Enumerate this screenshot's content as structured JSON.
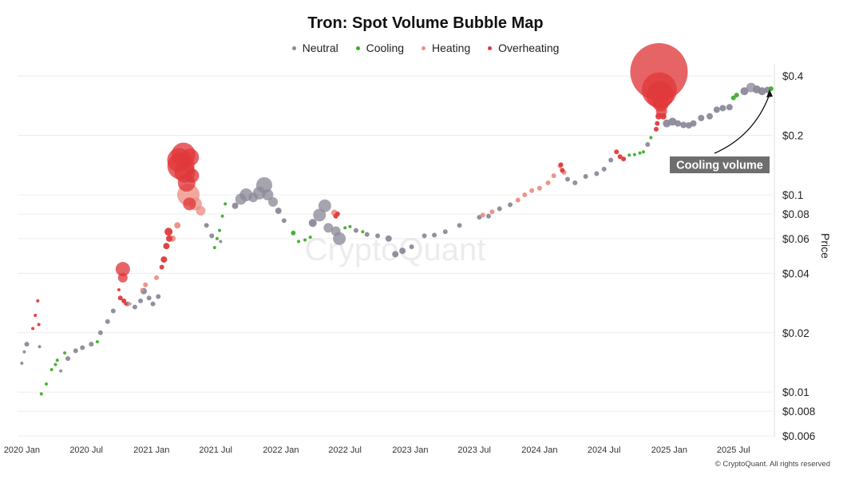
{
  "header": {
    "title": "Tron: Spot Volume Bubble Map"
  },
  "legend": [
    {
      "label": "Neutral",
      "color": "#8c8a99"
    },
    {
      "label": "Cooling",
      "color": "#3fae2a"
    },
    {
      "label": "Heating",
      "color": "#ec8f84"
    },
    {
      "label": "Overheating",
      "color": "#e0393b"
    }
  ],
  "footer": {
    "copyright": "© CryptoQuant. All rights reserved"
  },
  "watermark": "CryptoQuant",
  "annotation": {
    "label": "Cooling volume"
  },
  "chart_data": {
    "type": "scatter",
    "title": "Tron: Spot Volume Bubble Map",
    "ylabel": "Price",
    "yscale": "log",
    "ylim": [
      0.006,
      0.42
    ],
    "xlim": [
      "2019-12-20",
      "2025-10-20"
    ],
    "x_ticks": [
      "2020 Jan",
      "2020 Jul",
      "2021 Jan",
      "2021 Jul",
      "2022 Jan",
      "2022 Jul",
      "2023 Jan",
      "2023 Jul",
      "2024 Jan",
      "2024 Jul",
      "2025 Jan",
      "2025 Jul"
    ],
    "y_ticks": [
      {
        "value": 0.006,
        "label": "$0.006"
      },
      {
        "value": 0.008,
        "label": "$0.008"
      },
      {
        "value": 0.01,
        "label": "$0.01"
      },
      {
        "value": 0.02,
        "label": "$0.02"
      },
      {
        "value": 0.04,
        "label": "$0.04"
      },
      {
        "value": 0.06,
        "label": "$0.06"
      },
      {
        "value": 0.08,
        "label": "$0.08"
      },
      {
        "value": 0.1,
        "label": "$0.1"
      },
      {
        "value": 0.2,
        "label": "$0.2"
      },
      {
        "value": 0.4,
        "label": "$0.4"
      }
    ],
    "legend_position": "top-center",
    "grid": "horizontal",
    "series": [
      {
        "name": "Neutral",
        "color": "#8c8a99",
        "points": [
          {
            "date": "2020-01-01",
            "price": 0.014,
            "r": 2
          },
          {
            "date": "2020-01-08",
            "price": 0.016,
            "r": 2
          },
          {
            "date": "2020-01-15",
            "price": 0.0175,
            "r": 3
          },
          {
            "date": "2020-02-20",
            "price": 0.017,
            "r": 2
          },
          {
            "date": "2020-04-20",
            "price": 0.0128,
            "r": 2
          },
          {
            "date": "2020-05-10",
            "price": 0.0148,
            "r": 3
          },
          {
            "date": "2020-06-01",
            "price": 0.0162,
            "r": 3
          },
          {
            "date": "2020-06-20",
            "price": 0.0168,
            "r": 3
          },
          {
            "date": "2020-07-15",
            "price": 0.0175,
            "r": 3
          },
          {
            "date": "2020-08-10",
            "price": 0.02,
            "r": 3
          },
          {
            "date": "2020-08-30",
            "price": 0.0228,
            "r": 3
          },
          {
            "date": "2020-09-15",
            "price": 0.0258,
            "r": 3
          },
          {
            "date": "2020-10-25",
            "price": 0.028,
            "r": 3
          },
          {
            "date": "2020-11-15",
            "price": 0.027,
            "r": 3
          },
          {
            "date": "2020-12-01",
            "price": 0.029,
            "r": 3
          },
          {
            "date": "2020-12-10",
            "price": 0.0325,
            "r": 4
          },
          {
            "date": "2020-12-25",
            "price": 0.03,
            "r": 3
          },
          {
            "date": "2021-01-05",
            "price": 0.028,
            "r": 3
          },
          {
            "date": "2021-01-20",
            "price": 0.0305,
            "r": 3
          },
          {
            "date": "2021-06-05",
            "price": 0.07,
            "r": 3
          },
          {
            "date": "2021-06-20",
            "price": 0.062,
            "r": 3
          },
          {
            "date": "2021-07-15",
            "price": 0.058,
            "r": 2
          },
          {
            "date": "2021-08-25",
            "price": 0.088,
            "r": 4
          },
          {
            "date": "2021-09-10",
            "price": 0.095,
            "r": 7
          },
          {
            "date": "2021-09-25",
            "price": 0.1,
            "r": 8
          },
          {
            "date": "2021-10-15",
            "price": 0.097,
            "r": 6
          },
          {
            "date": "2021-11-01",
            "price": 0.102,
            "r": 8
          },
          {
            "date": "2021-11-15",
            "price": 0.112,
            "r": 10
          },
          {
            "date": "2021-11-25",
            "price": 0.1,
            "r": 7
          },
          {
            "date": "2021-12-10",
            "price": 0.092,
            "r": 6
          },
          {
            "date": "2021-12-25",
            "price": 0.083,
            "r": 4
          },
          {
            "date": "2022-01-10",
            "price": 0.074,
            "r": 3
          },
          {
            "date": "2022-04-01",
            "price": 0.072,
            "r": 5
          },
          {
            "date": "2022-04-20",
            "price": 0.079,
            "r": 8
          },
          {
            "date": "2022-05-05",
            "price": 0.088,
            "r": 8
          },
          {
            "date": "2022-05-15",
            "price": 0.068,
            "r": 6
          },
          {
            "date": "2022-06-05",
            "price": 0.0655,
            "r": 6
          },
          {
            "date": "2022-06-15",
            "price": 0.06,
            "r": 8
          },
          {
            "date": "2022-08-01",
            "price": 0.066,
            "r": 3
          },
          {
            "date": "2022-09-01",
            "price": 0.063,
            "r": 3
          },
          {
            "date": "2022-10-01",
            "price": 0.062,
            "r": 3
          },
          {
            "date": "2022-11-01",
            "price": 0.06,
            "r": 4
          },
          {
            "date": "2022-11-20",
            "price": 0.05,
            "r": 4
          },
          {
            "date": "2022-12-10",
            "price": 0.052,
            "r": 4
          },
          {
            "date": "2023-01-05",
            "price": 0.0545,
            "r": 3
          },
          {
            "date": "2023-02-10",
            "price": 0.062,
            "r": 3
          },
          {
            "date": "2023-03-10",
            "price": 0.0625,
            "r": 3
          },
          {
            "date": "2023-04-10",
            "price": 0.065,
            "r": 3
          },
          {
            "date": "2023-05-20",
            "price": 0.07,
            "r": 3
          },
          {
            "date": "2023-07-15",
            "price": 0.077,
            "r": 3
          },
          {
            "date": "2023-08-10",
            "price": 0.078,
            "r": 3
          },
          {
            "date": "2023-09-10",
            "price": 0.085,
            "r": 3
          },
          {
            "date": "2023-10-10",
            "price": 0.089,
            "r": 3
          },
          {
            "date": "2024-03-20",
            "price": 0.12,
            "r": 3
          },
          {
            "date": "2024-04-10",
            "price": 0.115,
            "r": 3
          },
          {
            "date": "2024-05-10",
            "price": 0.124,
            "r": 3
          },
          {
            "date": "2024-06-10",
            "price": 0.128,
            "r": 3
          },
          {
            "date": "2024-07-01",
            "price": 0.135,
            "r": 3
          },
          {
            "date": "2024-07-20",
            "price": 0.15,
            "r": 3
          },
          {
            "date": "2024-11-01",
            "price": 0.18,
            "r": 3
          },
          {
            "date": "2024-12-25",
            "price": 0.23,
            "r": 5
          },
          {
            "date": "2025-01-10",
            "price": 0.235,
            "r": 5
          },
          {
            "date": "2025-01-25",
            "price": 0.23,
            "r": 4
          },
          {
            "date": "2025-02-10",
            "price": 0.226,
            "r": 4
          },
          {
            "date": "2025-02-25",
            "price": 0.225,
            "r": 4
          },
          {
            "date": "2025-03-10",
            "price": 0.23,
            "r": 4
          },
          {
            "date": "2025-04-01",
            "price": 0.245,
            "r": 4
          },
          {
            "date": "2025-04-25",
            "price": 0.25,
            "r": 4
          },
          {
            "date": "2025-05-15",
            "price": 0.27,
            "r": 4
          },
          {
            "date": "2025-06-01",
            "price": 0.275,
            "r": 4
          },
          {
            "date": "2025-06-20",
            "price": 0.278,
            "r": 4
          },
          {
            "date": "2025-08-01",
            "price": 0.335,
            "r": 5
          },
          {
            "date": "2025-08-20",
            "price": 0.35,
            "r": 6
          },
          {
            "date": "2025-09-05",
            "price": 0.342,
            "r": 5
          },
          {
            "date": "2025-09-20",
            "price": 0.335,
            "r": 5
          },
          {
            "date": "2025-10-05",
            "price": 0.34,
            "r": 4
          }
        ]
      },
      {
        "name": "Cooling",
        "color": "#3fae2a",
        "points": [
          {
            "date": "2020-02-25",
            "price": 0.0098,
            "r": 2
          },
          {
            "date": "2020-03-10",
            "price": 0.011,
            "r": 2
          },
          {
            "date": "2020-03-25",
            "price": 0.013,
            "r": 2
          },
          {
            "date": "2020-04-05",
            "price": 0.0138,
            "r": 2
          },
          {
            "date": "2020-04-10",
            "price": 0.0145,
            "r": 2
          },
          {
            "date": "2020-05-01",
            "price": 0.0158,
            "r": 2
          },
          {
            "date": "2020-08-01",
            "price": 0.018,
            "r": 2
          },
          {
            "date": "2021-06-28",
            "price": 0.054,
            "r": 2
          },
          {
            "date": "2021-07-05",
            "price": 0.06,
            "r": 2
          },
          {
            "date": "2021-07-12",
            "price": 0.066,
            "r": 2
          },
          {
            "date": "2021-07-20",
            "price": 0.078,
            "r": 2
          },
          {
            "date": "2021-07-28",
            "price": 0.09,
            "r": 2
          },
          {
            "date": "2022-02-05",
            "price": 0.064,
            "r": 3
          },
          {
            "date": "2022-02-20",
            "price": 0.058,
            "r": 2
          },
          {
            "date": "2022-03-10",
            "price": 0.059,
            "r": 2
          },
          {
            "date": "2022-03-25",
            "price": 0.061,
            "r": 2
          },
          {
            "date": "2022-07-01",
            "price": 0.068,
            "r": 2
          },
          {
            "date": "2022-07-15",
            "price": 0.069,
            "r": 2
          },
          {
            "date": "2022-08-20",
            "price": 0.065,
            "r": 2
          },
          {
            "date": "2024-09-10",
            "price": 0.159,
            "r": 2
          },
          {
            "date": "2024-09-25",
            "price": 0.16,
            "r": 2
          },
          {
            "date": "2024-10-10",
            "price": 0.163,
            "r": 2
          },
          {
            "date": "2024-10-20",
            "price": 0.165,
            "r": 2
          },
          {
            "date": "2024-11-10",
            "price": 0.195,
            "r": 2
          },
          {
            "date": "2025-07-01",
            "price": 0.31,
            "r": 3
          },
          {
            "date": "2025-07-10",
            "price": 0.32,
            "r": 3
          },
          {
            "date": "2025-10-15",
            "price": 0.345,
            "r": 3
          }
        ]
      },
      {
        "name": "Heating",
        "color": "#ec8f84",
        "points": [
          {
            "date": "2020-11-01",
            "price": 0.028,
            "r": 2
          },
          {
            "date": "2020-12-05",
            "price": 0.033,
            "r": 2
          },
          {
            "date": "2020-12-15",
            "price": 0.035,
            "r": 3
          },
          {
            "date": "2021-01-15",
            "price": 0.038,
            "r": 3
          },
          {
            "date": "2021-03-01",
            "price": 0.06,
            "r": 4
          },
          {
            "date": "2021-03-15",
            "price": 0.07,
            "r": 4
          },
          {
            "date": "2021-04-15",
            "price": 0.1,
            "r": 14
          },
          {
            "date": "2021-05-05",
            "price": 0.09,
            "r": 8
          },
          {
            "date": "2021-05-20",
            "price": 0.083,
            "r": 6
          },
          {
            "date": "2022-06-01",
            "price": 0.081,
            "r": 4
          },
          {
            "date": "2023-07-25",
            "price": 0.079,
            "r": 3
          },
          {
            "date": "2023-08-20",
            "price": 0.082,
            "r": 3
          },
          {
            "date": "2023-11-01",
            "price": 0.094,
            "r": 3
          },
          {
            "date": "2023-11-20",
            "price": 0.1,
            "r": 3
          },
          {
            "date": "2023-12-10",
            "price": 0.105,
            "r": 3
          },
          {
            "date": "2024-01-01",
            "price": 0.108,
            "r": 3
          },
          {
            "date": "2024-01-25",
            "price": 0.115,
            "r": 3
          },
          {
            "date": "2024-02-10",
            "price": 0.125,
            "r": 3
          },
          {
            "date": "2024-02-28",
            "price": 0.14,
            "r": 3
          },
          {
            "date": "2024-03-10",
            "price": 0.13,
            "r": 3
          }
        ]
      },
      {
        "name": "Overheating",
        "color": "#e0393b",
        "points": [
          {
            "date": "2020-02-01",
            "price": 0.021,
            "r": 2
          },
          {
            "date": "2020-02-08",
            "price": 0.0245,
            "r": 2
          },
          {
            "date": "2020-02-15",
            "price": 0.029,
            "r": 2
          },
          {
            "date": "2020-02-18",
            "price": 0.022,
            "r": 2
          },
          {
            "date": "2020-10-01",
            "price": 0.033,
            "r": 2
          },
          {
            "date": "2020-10-05",
            "price": 0.03,
            "r": 3
          },
          {
            "date": "2020-10-15",
            "price": 0.029,
            "r": 3
          },
          {
            "date": "2020-10-20",
            "price": 0.028,
            "r": 2
          },
          {
            "date": "2020-10-12",
            "price": 0.042,
            "r": 9
          },
          {
            "date": "2020-10-12",
            "price": 0.038,
            "r": 6
          },
          {
            "date": "2021-01-30",
            "price": 0.043,
            "r": 3
          },
          {
            "date": "2021-02-05",
            "price": 0.047,
            "r": 4
          },
          {
            "date": "2021-02-12",
            "price": 0.055,
            "r": 4
          },
          {
            "date": "2021-02-20",
            "price": 0.06,
            "r": 4
          },
          {
            "date": "2021-02-18",
            "price": 0.065,
            "r": 5
          },
          {
            "date": "2021-03-20",
            "price": 0.15,
            "r": 15
          },
          {
            "date": "2021-03-25",
            "price": 0.14,
            "r": 17
          },
          {
            "date": "2021-04-01",
            "price": 0.16,
            "r": 15
          },
          {
            "date": "2021-04-05",
            "price": 0.13,
            "r": 13
          },
          {
            "date": "2021-04-10",
            "price": 0.115,
            "r": 11
          },
          {
            "date": "2021-04-18",
            "price": 0.09,
            "r": 8
          },
          {
            "date": "2021-04-20",
            "price": 0.155,
            "r": 11
          },
          {
            "date": "2021-04-25",
            "price": 0.125,
            "r": 9
          },
          {
            "date": "2022-06-05",
            "price": 0.078,
            "r": 3
          },
          {
            "date": "2022-06-10",
            "price": 0.08,
            "r": 3
          },
          {
            "date": "2024-03-01",
            "price": 0.142,
            "r": 3
          },
          {
            "date": "2024-03-05",
            "price": 0.133,
            "r": 3
          },
          {
            "date": "2024-08-05",
            "price": 0.165,
            "r": 3
          },
          {
            "date": "2024-08-15",
            "price": 0.156,
            "r": 3
          },
          {
            "date": "2024-08-25",
            "price": 0.152,
            "r": 3
          },
          {
            "date": "2024-11-25",
            "price": 0.215,
            "r": 3
          },
          {
            "date": "2024-11-28",
            "price": 0.23,
            "r": 3
          },
          {
            "date": "2024-12-02",
            "price": 0.25,
            "r": 4
          },
          {
            "date": "2024-12-03",
            "price": 0.42,
            "r": 36
          },
          {
            "date": "2024-12-04",
            "price": 0.34,
            "r": 22
          },
          {
            "date": "2024-12-06",
            "price": 0.32,
            "r": 17
          },
          {
            "date": "2024-12-08",
            "price": 0.29,
            "r": 10
          },
          {
            "date": "2024-12-10",
            "price": 0.265,
            "r": 7
          },
          {
            "date": "2024-12-15",
            "price": 0.25,
            "r": 4
          }
        ]
      }
    ]
  }
}
